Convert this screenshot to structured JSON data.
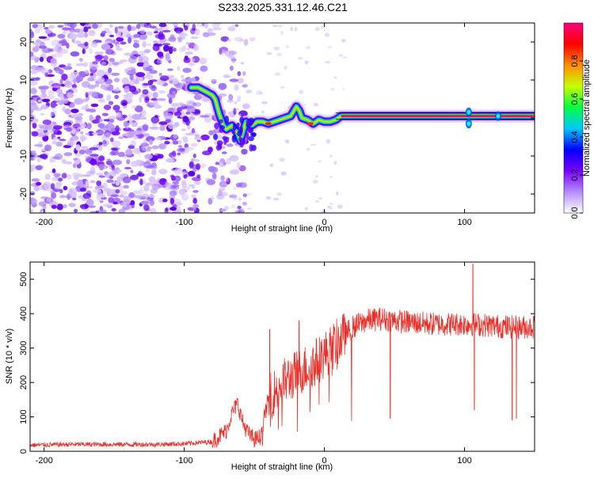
{
  "title": "S233.2025.331.12.46.C21",
  "chart_data": [
    {
      "type": "heatmap",
      "panel": "spectrogram",
      "xlabel": "Height of straight line (km)",
      "ylabel": "Frequency (Hz)",
      "xlim": [
        -210,
        150
      ],
      "ylim": [
        -25,
        25
      ],
      "x_ticks": [
        -200,
        -100,
        0,
        100
      ],
      "x_tick_labels": [
        "-200",
        "-100",
        "0",
        "100"
      ],
      "y_ticks": [
        -20,
        -10,
        0,
        10,
        20
      ],
      "y_tick_labels": [
        "-20",
        "-10",
        "0",
        "10",
        "20"
      ],
      "noise_region_km": [
        -210,
        -75
      ],
      "ridge": {
        "x": [
          -95,
          -90,
          -85,
          -80,
          -78,
          -75,
          -72,
          -70,
          -66,
          -62,
          -60,
          -56,
          -52,
          -48,
          -44,
          -40,
          -36,
          -32,
          -28,
          -24,
          -20,
          -18,
          -16,
          -12,
          -8,
          -4,
          0,
          4,
          8,
          12,
          150
        ],
        "y": [
          8,
          8,
          7,
          6,
          5,
          1,
          -2,
          -3,
          -2,
          -4,
          -6,
          -1,
          -2,
          -1,
          -1,
          -1.5,
          -1,
          -0.5,
          0,
          0.5,
          3,
          2,
          0,
          -0.5,
          -1.5,
          -0.5,
          -1,
          -1,
          -0.5,
          0.5,
          0.5
        ]
      },
      "colorbar": {
        "label": "Normalized spectral amplitude",
        "range": [
          0,
          1
        ],
        "ticks": [
          0.0,
          0.2,
          0.4,
          0.6,
          0.8
        ],
        "tick_labels": [
          "0.0",
          "0.2",
          "0.4",
          "0.6",
          "0.8"
        ],
        "colors": [
          "#ffffff",
          "#b58cff",
          "#7a00ff",
          "#0000ff",
          "#00c8ff",
          "#00ff40",
          "#c8ff00",
          "#ff8c00",
          "#ff0000",
          "#ff0080"
        ]
      }
    },
    {
      "type": "line",
      "panel": "snr",
      "xlabel": "Height of straight line (km)",
      "ylabel": "SNR (10 * v/v)",
      "xlim": [
        -210,
        150
      ],
      "ylim": [
        0,
        550
      ],
      "x_ticks": [
        -200,
        -100,
        0,
        100
      ],
      "x_tick_labels": [
        "-200",
        "-100",
        "0",
        "100"
      ],
      "y_ticks": [
        0,
        100,
        200,
        300,
        400,
        500
      ],
      "y_tick_labels": [
        "0",
        "100",
        "200",
        "300",
        "400",
        "500"
      ],
      "series": [
        {
          "name": "SNR",
          "color": "#e8302a",
          "x": [
            -210,
            -180,
            -150,
            -120,
            -100,
            -80,
            -70,
            -66,
            -62,
            -58,
            -54,
            -50,
            -46,
            -40,
            -30,
            -20,
            -10,
            0,
            10,
            20,
            30,
            40,
            50,
            60,
            70,
            80,
            90,
            100,
            110,
            120,
            130,
            140,
            150
          ],
          "y": [
            18,
            20,
            20,
            20,
            22,
            28,
            60,
            110,
            140,
            80,
            50,
            35,
            40,
            150,
            200,
            225,
            250,
            280,
            320,
            360,
            380,
            385,
            380,
            375,
            372,
            370,
            370,
            370,
            368,
            365,
            362,
            360,
            362
          ]
        }
      ],
      "spikes": [
        {
          "x": -39,
          "y": 355
        },
        {
          "x": -18,
          "y": 380
        },
        {
          "x": 47,
          "y": 95
        },
        {
          "x": 106,
          "y": 545
        },
        {
          "x": 107,
          "y": 120
        },
        {
          "x": 134,
          "y": 90
        },
        {
          "x": 137,
          "y": 95
        }
      ]
    }
  ]
}
